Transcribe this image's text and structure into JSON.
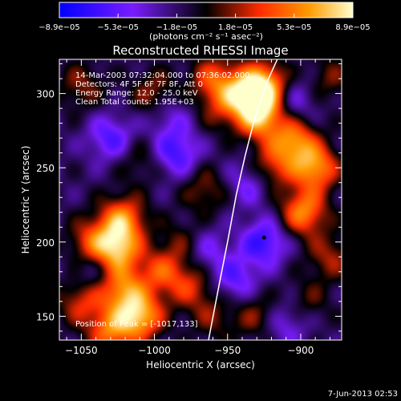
{
  "chart_data": {
    "type": "heatmap",
    "title": "Reconstructed RHESSI Image",
    "xlabel": "Heliocentric X (arcsec)",
    "ylabel": "Heliocentric Y (arcsec)",
    "xlim": [
      -1065,
      -872
    ],
    "ylim": [
      134,
      323
    ],
    "x_ticks": [
      -1050,
      -1000,
      -950,
      -900
    ],
    "y_ticks": [
      150,
      200,
      250,
      300
    ],
    "x_tick_labels": [
      "−1050",
      "−1000",
      "−950",
      "−900"
    ],
    "y_tick_labels": [
      "150",
      "200",
      "250",
      "300"
    ],
    "colorbar": {
      "ticks": [
        "−8.9e−05",
        "−5.3e−05",
        "−1.8e−05",
        "1.8e−05",
        "5.3e−05",
        "8.9e−05"
      ],
      "unit_label": "(photons cm⁻² s⁻¹ asec⁻²)",
      "range": [
        -8.9e-05,
        8.9e-05
      ],
      "colors": [
        "#0000ff",
        "#7a1cff",
        "#000000",
        "#ff2a00",
        "#ff9a00",
        "#ffffcc"
      ]
    },
    "annotations": [
      "14-Mar-2003 07:32:04.000 to 07:36:02.000",
      "Detectors: 4F 5F 6F 7F 8F, Att 0",
      "Energy Range: 12.0 - 25.0 keV",
      "Clean     Total counts: 1.95E+03"
    ],
    "peak_label": "Position of Peak = [-1017,133]",
    "limb_points": [
      [
        -963,
        134
      ],
      [
        -956,
        170
      ],
      [
        -950,
        200
      ],
      [
        -944,
        232
      ],
      [
        -938,
        258
      ],
      [
        -931,
        285
      ],
      [
        -922,
        310
      ],
      [
        -916,
        323
      ]
    ],
    "peak_position": [
      -1017,
      133
    ],
    "marker_position": [
      -925,
      203
    ],
    "blobs": [
      {
        "x": -1050,
        "y": 305,
        "v": 0.35
      },
      {
        "x": -1043,
        "y": 200,
        "v": 0.55
      },
      {
        "x": -1050,
        "y": 160,
        "v": 0.5
      },
      {
        "x": -1042,
        "y": 180,
        "v": -0.25
      },
      {
        "x": -1025,
        "y": 195,
        "v": 0.9
      },
      {
        "x": -1022,
        "y": 215,
        "v": 0.8
      },
      {
        "x": -1022,
        "y": 168,
        "v": 0.75
      },
      {
        "x": -1010,
        "y": 150,
        "v": 0.95
      },
      {
        "x": -1030,
        "y": 140,
        "v": 0.7
      },
      {
        "x": -995,
        "y": 180,
        "v": 0.55
      },
      {
        "x": -1010,
        "y": 255,
        "v": 0.25
      },
      {
        "x": -1030,
        "y": 270,
        "v": -0.5
      },
      {
        "x": -1000,
        "y": 300,
        "v": 0.4
      },
      {
        "x": -990,
        "y": 285,
        "v": -0.3
      },
      {
        "x": -985,
        "y": 260,
        "v": -0.55
      },
      {
        "x": -965,
        "y": 235,
        "v": 0.35
      },
      {
        "x": -960,
        "y": 310,
        "v": 0.55
      },
      {
        "x": -955,
        "y": 290,
        "v": 0.3
      },
      {
        "x": -940,
        "y": 300,
        "v": 0.75
      },
      {
        "x": -925,
        "y": 305,
        "v": 1.0
      },
      {
        "x": -928,
        "y": 285,
        "v": 0.95
      },
      {
        "x": -920,
        "y": 250,
        "v": 0.5
      },
      {
        "x": -905,
        "y": 268,
        "v": 0.8
      },
      {
        "x": -890,
        "y": 250,
        "v": 0.85
      },
      {
        "x": -898,
        "y": 220,
        "v": 0.8
      },
      {
        "x": -880,
        "y": 190,
        "v": 0.4
      },
      {
        "x": -905,
        "y": 295,
        "v": -0.35
      },
      {
        "x": -880,
        "y": 310,
        "v": 0.3
      },
      {
        "x": -935,
        "y": 240,
        "v": -0.4
      },
      {
        "x": -925,
        "y": 200,
        "v": -0.6
      },
      {
        "x": -945,
        "y": 175,
        "v": -0.45
      },
      {
        "x": -965,
        "y": 195,
        "v": -0.35
      },
      {
        "x": -980,
        "y": 200,
        "v": 0.3
      },
      {
        "x": -975,
        "y": 170,
        "v": 0.45
      },
      {
        "x": -960,
        "y": 150,
        "v": 0.3
      },
      {
        "x": -910,
        "y": 145,
        "v": -0.35
      },
      {
        "x": -895,
        "y": 160,
        "v": 0.25
      },
      {
        "x": -930,
        "y": 150,
        "v": 0.35
      }
    ]
  },
  "footer_date": "7-Jun-2013 02:53",
  "colors": {
    "background": "#000000",
    "foreground": "#ffffff"
  }
}
